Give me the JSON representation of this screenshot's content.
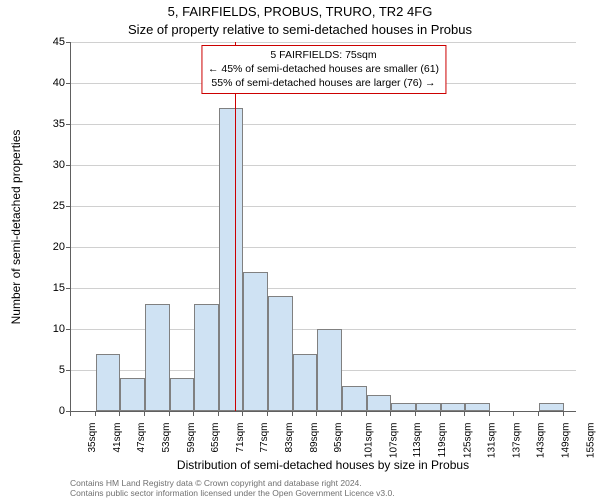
{
  "title": "5, FAIRFIELDS, PROBUS, TRURO, TR2 4FG",
  "subtitle": "Size of property relative to semi-detached houses in Probus",
  "y_axis_label": "Number of semi-detached properties",
  "x_axis_label": "Distribution of semi-detached houses by size in Probus",
  "footnote_line1": "Contains HM Land Registry data © Crown copyright and database right 2024.",
  "footnote_line2": "Contains public sector information licensed under the Open Government Licence v3.0.",
  "info_box": {
    "line1": "5 FAIRFIELDS: 75sqm",
    "line2": "← 45% of semi-detached houses are smaller (61)",
    "line3": "55% of semi-detached houses are larger (76) →"
  },
  "chart": {
    "type": "histogram",
    "ylim": [
      0,
      45
    ],
    "ytick_step": 5,
    "xlim": [
      35,
      158
    ],
    "xtick_start": 35,
    "xtick_step": 6,
    "xtick_count": 21,
    "xtick_unit": "sqm",
    "indicator_x": 75,
    "bar_color": "#cfe2f3",
    "bar_border_color": "#808080",
    "grid_color": "#d0d0d0",
    "axis_color": "#606060",
    "indicator_color": "#cc0000",
    "background_color": "#ffffff",
    "bars": [
      {
        "x0": 35,
        "x1": 41,
        "count": 0
      },
      {
        "x0": 41,
        "x1": 47,
        "count": 7
      },
      {
        "x0": 47,
        "x1": 53,
        "count": 4
      },
      {
        "x0": 53,
        "x1": 59,
        "count": 13
      },
      {
        "x0": 59,
        "x1": 65,
        "count": 4
      },
      {
        "x0": 65,
        "x1": 71,
        "count": 13
      },
      {
        "x0": 71,
        "x1": 77,
        "count": 37
      },
      {
        "x0": 77,
        "x1": 83,
        "count": 17
      },
      {
        "x0": 83,
        "x1": 89,
        "count": 14
      },
      {
        "x0": 89,
        "x1": 95,
        "count": 7
      },
      {
        "x0": 95,
        "x1": 101,
        "count": 10
      },
      {
        "x0": 101,
        "x1": 107,
        "count": 3
      },
      {
        "x0": 107,
        "x1": 113,
        "count": 2
      },
      {
        "x0": 113,
        "x1": 119,
        "count": 1
      },
      {
        "x0": 119,
        "x1": 125,
        "count": 1
      },
      {
        "x0": 125,
        "x1": 131,
        "count": 1
      },
      {
        "x0": 131,
        "x1": 137,
        "count": 1
      },
      {
        "x0": 137,
        "x1": 143,
        "count": 0
      },
      {
        "x0": 143,
        "x1": 149,
        "count": 0
      },
      {
        "x0": 149,
        "x1": 155,
        "count": 1
      }
    ]
  }
}
